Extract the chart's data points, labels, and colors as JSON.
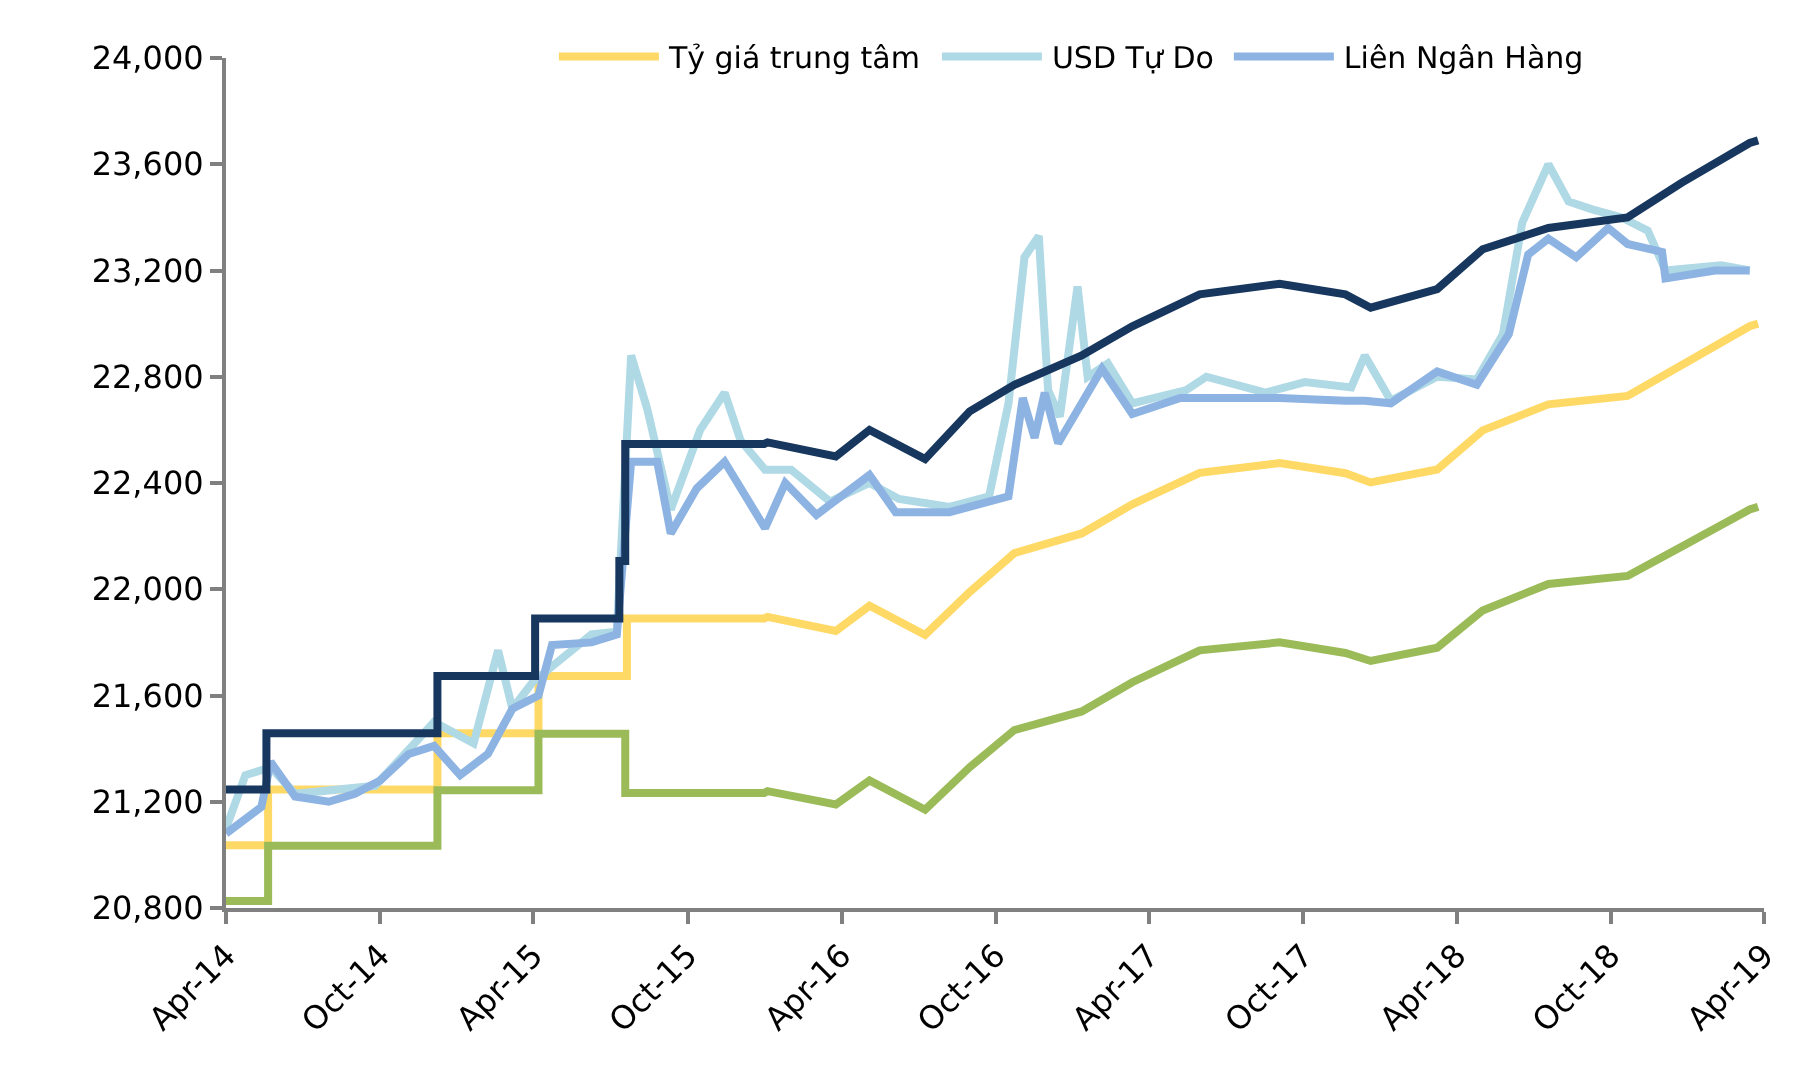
{
  "chart_data": {
    "type": "line",
    "xlim": [
      "2014-04-01",
      "2019-04-01"
    ],
    "xticks": [
      {
        "value": "2014-04-01",
        "label": "Apr-14"
      },
      {
        "value": "2014-10-01",
        "label": "Oct-14"
      },
      {
        "value": "2015-04-01",
        "label": "Apr-15"
      },
      {
        "value": "2015-10-01",
        "label": "Oct-15"
      },
      {
        "value": "2016-04-01",
        "label": "Apr-16"
      },
      {
        "value": "2016-10-01",
        "label": "Oct-16"
      },
      {
        "value": "2017-04-01",
        "label": "Apr-17"
      },
      {
        "value": "2017-10-01",
        "label": "Oct-17"
      },
      {
        "value": "2018-04-01",
        "label": "Apr-18"
      },
      {
        "value": "2018-10-01",
        "label": "Oct-18"
      },
      {
        "value": "2019-04-01",
        "label": "Apr-19"
      }
    ],
    "ylim": [
      20800,
      24000
    ],
    "yticks": [
      {
        "value": 20800,
        "label": "20,800"
      },
      {
        "value": 21200,
        "label": "21,200"
      },
      {
        "value": 21600,
        "label": "21,600"
      },
      {
        "value": 22000,
        "label": "22,000"
      },
      {
        "value": 22400,
        "label": "22,400"
      },
      {
        "value": 22800,
        "label": "22,800"
      },
      {
        "value": 23200,
        "label": "23,200"
      },
      {
        "value": 23600,
        "label": "23,600"
      },
      {
        "value": 24000,
        "label": "24,000"
      }
    ],
    "legend": "top",
    "marker": "none",
    "line_style": "solid",
    "series": [
      {
        "name": "Tỷ giá trung tâm",
        "color": "#ffd966",
        "x": [
          "2014-04-01",
          "2014-05-21",
          "2014-05-21",
          "2014-12-08",
          "2014-12-08",
          "2015-04-07",
          "2015-04-07",
          "2015-07-21",
          "2015-07-21",
          "2015-12-31",
          "2016-01-04",
          "2016-03-25",
          "2016-05-04",
          "2016-07-09",
          "2016-08-31",
          "2016-10-23",
          "2017-01-11",
          "2017-03-12",
          "2017-05-31",
          "2017-09-03",
          "2017-11-20",
          "2017-12-20",
          "2018-03-09",
          "2018-05-02",
          "2018-07-19",
          "2018-10-21",
          "2018-12-24",
          "2019-03-15",
          "2019-03-25"
        ],
        "values": [
          21036,
          21036,
          21246,
          21246,
          21458,
          21458,
          21673,
          21673,
          21890,
          21890,
          21896,
          21843,
          21938,
          21828,
          21990,
          22136,
          22210,
          22320,
          22438,
          22475,
          22437,
          22402,
          22451,
          22598,
          22696,
          22728,
          22843,
          22990,
          23000
        ]
      },
      {
        "name": "USD Tự Do",
        "color": "#b0d9e6",
        "x": [
          "2014-04-01",
          "2014-04-24",
          "2014-05-24",
          "2014-06-22",
          "2014-09-25",
          "2014-11-11",
          "2014-12-04",
          "2015-01-20",
          "2015-02-18",
          "2015-03-07",
          "2015-03-31",
          "2015-06-09",
          "2015-07-09",
          "2015-07-26",
          "2015-08-14",
          "2015-09-11",
          "2015-10-16",
          "2015-11-14",
          "2015-12-03",
          "2016-01-01",
          "2016-02-01",
          "2016-03-18",
          "2016-05-04",
          "2016-06-08",
          "2016-08-07",
          "2016-09-23",
          "2016-10-16",
          "2016-11-04",
          "2016-11-21",
          "2016-12-02",
          "2016-12-16",
          "2017-01-06",
          "2017-01-18",
          "2017-02-11",
          "2017-03-12",
          "2017-05-15",
          "2017-06-08",
          "2017-08-17",
          "2017-10-03",
          "2017-11-27",
          "2017-12-13",
          "2018-01-13",
          "2018-03-09",
          "2018-04-25",
          "2018-05-26",
          "2018-06-18",
          "2018-07-19",
          "2018-08-12",
          "2018-09-09",
          "2018-10-14",
          "2018-11-14",
          "2018-12-05",
          "2019-02-09",
          "2019-03-15"
        ],
        "values": [
          21100,
          21300,
          21330,
          21230,
          21260,
          21420,
          21500,
          21420,
          21770,
          21550,
          21650,
          21830,
          21840,
          22880,
          22680,
          22300,
          22600,
          22740,
          22560,
          22450,
          22450,
          22330,
          22400,
          22340,
          22310,
          22350,
          22700,
          23250,
          23330,
          22750,
          22650,
          23140,
          22800,
          22850,
          22700,
          22750,
          22800,
          22740,
          22780,
          22760,
          22880,
          22710,
          22800,
          22790,
          22960,
          23380,
          23600,
          23460,
          23430,
          23400,
          23350,
          23200,
          23220,
          23200
        ]
      },
      {
        "name": "Liên Ngân Hàng",
        "color": "#8db3e2",
        "x": [
          "2014-04-01",
          "2014-05-13",
          "2014-05-24",
          "2014-06-22",
          "2014-08-01",
          "2014-09-01",
          "2014-10-01",
          "2014-11-04",
          "2014-12-04",
          "2015-01-04",
          "2015-02-06",
          "2015-03-07",
          "2015-04-07",
          "2015-04-23",
          "2015-06-09",
          "2015-07-09",
          "2015-07-26",
          "2015-08-26",
          "2015-09-11",
          "2015-10-12",
          "2015-11-14",
          "2016-01-01",
          "2016-01-25",
          "2016-03-02",
          "2016-05-04",
          "2016-06-04",
          "2016-08-07",
          "2016-10-16",
          "2016-11-02",
          "2016-11-16",
          "2016-11-28",
          "2016-12-14",
          "2017-02-04",
          "2017-03-12",
          "2017-05-08",
          "2017-09-03",
          "2017-11-20",
          "2017-12-13",
          "2018-01-13",
          "2018-03-09",
          "2018-04-25",
          "2018-06-02",
          "2018-06-25",
          "2018-07-19",
          "2018-08-21",
          "2018-09-28",
          "2018-10-21",
          "2018-12-01",
          "2018-12-05",
          "2019-02-02",
          "2019-03-15"
        ],
        "values": [
          21080,
          21180,
          21350,
          21220,
          21200,
          21230,
          21280,
          21380,
          21410,
          21300,
          21380,
          21550,
          21600,
          21790,
          21800,
          21830,
          22480,
          22480,
          22210,
          22380,
          22480,
          22230,
          22400,
          22280,
          22430,
          22290,
          22290,
          22350,
          22720,
          22570,
          22740,
          22550,
          22830,
          22660,
          22720,
          22720,
          22710,
          22710,
          22700,
          22820,
          22770,
          22960,
          23260,
          23320,
          23250,
          23360,
          23300,
          23270,
          23170,
          23200,
          23200
        ]
      },
      {
        "color": "#17375e",
        "x": [
          "2014-04-01",
          "2014-05-19",
          "2014-05-19",
          "2014-12-08",
          "2014-12-08",
          "2015-04-03",
          "2015-04-03",
          "2015-07-12",
          "2015-07-12",
          "2015-07-19",
          "2015-07-19",
          "2015-12-31",
          "2016-01-04",
          "2016-03-25",
          "2016-05-04",
          "2016-07-09",
          "2016-08-31",
          "2016-10-23",
          "2017-01-11",
          "2017-03-12",
          "2017-05-31",
          "2017-09-03",
          "2017-11-20",
          "2017-12-20",
          "2018-03-09",
          "2018-05-02",
          "2018-07-19",
          "2018-10-21",
          "2018-12-24",
          "2019-03-15",
          "2019-03-25"
        ],
        "values": [
          21246,
          21246,
          21458,
          21458,
          21673,
          21673,
          21890,
          21890,
          22106,
          22106,
          22547,
          22547,
          22553,
          22500,
          22600,
          22490,
          22670,
          22770,
          22880,
          22990,
          23110,
          23150,
          23110,
          23060,
          23130,
          23280,
          23360,
          23400,
          23530,
          23680,
          23690
        ]
      },
      {
        "color": "#9bbb59",
        "x": [
          "2014-04-01",
          "2014-05-21",
          "2014-05-21",
          "2014-12-08",
          "2014-12-08",
          "2015-04-07",
          "2015-04-07",
          "2015-07-19",
          "2015-07-19",
          "2015-12-31",
          "2016-01-04",
          "2016-03-25",
          "2016-05-04",
          "2016-07-09",
          "2016-08-31",
          "2016-10-23",
          "2017-01-11",
          "2017-03-12",
          "2017-05-31",
          "2017-09-03",
          "2017-11-20",
          "2017-12-20",
          "2018-03-09",
          "2018-05-02",
          "2018-07-19",
          "2018-10-21",
          "2018-12-24",
          "2019-03-15",
          "2019-03-25"
        ],
        "values": [
          20826,
          20826,
          21034,
          21034,
          21243,
          21243,
          21456,
          21456,
          21233,
          21233,
          21240,
          21190,
          21280,
          21170,
          21330,
          21470,
          21540,
          21650,
          21770,
          21800,
          21760,
          21730,
          21780,
          21920,
          22020,
          22050,
          22160,
          22300,
          22310
        ]
      }
    ]
  }
}
